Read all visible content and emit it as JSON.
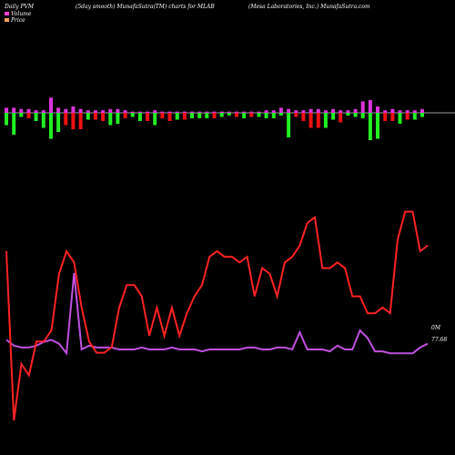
{
  "header": {
    "left": "Daily PVM",
    "center": "(5day smooth) MunafaSutra(TM) charts for MLAB",
    "right": "(Mesa Laboratories, Inc.) MunafaSutra.com"
  },
  "legend": [
    {
      "label": "Volume",
      "color": "#ff3fd0"
    },
    {
      "label": "Price",
      "color": "#f5a05a"
    }
  ],
  "colors": {
    "background": "#000000",
    "up_bar": "#22ee22",
    "down_bar": "#ee1111",
    "volume_bar": "#dd33dd",
    "volume_line": "#c050e0",
    "price_line": "#ff2222",
    "baseline": "#cccccc"
  },
  "chart_data": {
    "type": "bar",
    "volume_end_label": "0M",
    "price_end_label": "77.68",
    "bars": [
      {
        "dir": "up",
        "vol": 0.4,
        "mov": 0.9
      },
      {
        "dir": "up",
        "vol": 0.4,
        "mov": 1.6
      },
      {
        "dir": "up",
        "vol": 0.3,
        "mov": 0.3
      },
      {
        "dir": "down",
        "vol": 0.3,
        "mov": 0.4
      },
      {
        "dir": "up",
        "vol": 0.2,
        "mov": 0.6
      },
      {
        "dir": "up",
        "vol": 0.2,
        "mov": 1.1
      },
      {
        "dir": "up",
        "vol": 1.2,
        "mov": 1.9
      },
      {
        "dir": "up",
        "vol": 0.4,
        "mov": 1.4
      },
      {
        "dir": "down",
        "vol": 0.3,
        "mov": 0.9
      },
      {
        "dir": "down",
        "vol": 0.5,
        "mov": 1.2
      },
      {
        "dir": "down",
        "vol": 0.3,
        "mov": 1.2
      },
      {
        "dir": "up",
        "vol": 0.2,
        "mov": 0.5
      },
      {
        "dir": "down",
        "vol": 0.2,
        "mov": 0.5
      },
      {
        "dir": "down",
        "vol": 0.2,
        "mov": 0.6
      },
      {
        "dir": "up",
        "vol": 0.3,
        "mov": 0.9
      },
      {
        "dir": "up",
        "vol": 0.3,
        "mov": 0.8
      },
      {
        "dir": "down",
        "vol": 0.2,
        "mov": 0.4
      },
      {
        "dir": "up",
        "vol": 0.1,
        "mov": 0.3
      },
      {
        "dir": "up",
        "vol": 0.1,
        "mov": 0.6
      },
      {
        "dir": "down",
        "vol": 0.1,
        "mov": 0.6
      },
      {
        "dir": "up",
        "vol": 0.2,
        "mov": 0.9
      },
      {
        "dir": "down",
        "vol": 0.1,
        "mov": 0.4
      },
      {
        "dir": "down",
        "vol": 0.1,
        "mov": 0.6
      },
      {
        "dir": "up",
        "vol": 0.1,
        "mov": 0.5
      },
      {
        "dir": "down",
        "vol": 0.1,
        "mov": 0.5
      },
      {
        "dir": "up",
        "vol": 0.1,
        "mov": 0.4
      },
      {
        "dir": "up",
        "vol": 0.1,
        "mov": 0.4
      },
      {
        "dir": "up",
        "vol": 0.1,
        "mov": 0.4
      },
      {
        "dir": "down",
        "vol": 0.1,
        "mov": 0.4
      },
      {
        "dir": "up",
        "vol": 0.1,
        "mov": 0.3
      },
      {
        "dir": "up",
        "vol": 0.1,
        "mov": 0.2
      },
      {
        "dir": "down",
        "vol": 0.1,
        "mov": 0.3
      },
      {
        "dir": "up",
        "vol": 0.1,
        "mov": 0.4
      },
      {
        "dir": "down",
        "vol": 0.1,
        "mov": 0.3
      },
      {
        "dir": "up",
        "vol": 0.1,
        "mov": 0.3
      },
      {
        "dir": "up",
        "vol": 0.2,
        "mov": 0.4
      },
      {
        "dir": "up",
        "vol": 0.2,
        "mov": 0.4
      },
      {
        "dir": "up",
        "vol": 0.4,
        "mov": 0.2
      },
      {
        "dir": "up",
        "vol": 0.3,
        "mov": 1.8
      },
      {
        "dir": "down",
        "vol": 0.2,
        "mov": 0.3
      },
      {
        "dir": "down",
        "vol": 0.2,
        "mov": 0.6
      },
      {
        "dir": "down",
        "vol": 0.3,
        "mov": 1.1
      },
      {
        "dir": "down",
        "vol": 0.3,
        "mov": 1.1
      },
      {
        "dir": "up",
        "vol": 0.2,
        "mov": 1.1
      },
      {
        "dir": "up",
        "vol": 0.3,
        "mov": 0.5
      },
      {
        "dir": "down",
        "vol": 0.2,
        "mov": 0.7
      },
      {
        "dir": "up",
        "vol": 0.2,
        "mov": 0.2
      },
      {
        "dir": "up",
        "vol": 0.3,
        "mov": 0.3
      },
      {
        "dir": "up",
        "vol": 0.9,
        "mov": 0.4
      },
      {
        "dir": "up",
        "vol": 1.0,
        "mov": 2.0
      },
      {
        "dir": "up",
        "vol": 0.5,
        "mov": 1.9
      },
      {
        "dir": "down",
        "vol": 0.2,
        "mov": 0.6
      },
      {
        "dir": "down",
        "vol": 0.3,
        "mov": 0.6
      },
      {
        "dir": "up",
        "vol": 0.2,
        "mov": 0.8
      },
      {
        "dir": "down",
        "vol": 0.2,
        "mov": 0.5
      },
      {
        "dir": "up",
        "vol": 0.2,
        "mov": 0.5
      },
      {
        "dir": "up",
        "vol": 0.3,
        "mov": 0.3
      }
    ],
    "volume_line": [
      65,
      62,
      61,
      61,
      62,
      64,
      65,
      63,
      58,
      100,
      60,
      62,
      61,
      61,
      61,
      60,
      60,
      60,
      61,
      60,
      60,
      60,
      61,
      60,
      60,
      60,
      59,
      60,
      60,
      60,
      60,
      60,
      61,
      61,
      60,
      60,
      61,
      61,
      60,
      69,
      60,
      60,
      60,
      59,
      62,
      60,
      60,
      70,
      66,
      59,
      59,
      58,
      58,
      58,
      58,
      61,
      63
    ],
    "price_line": [
      71.5,
      56.5,
      61.5,
      60.5,
      63.5,
      63.5,
      64.5,
      69.5,
      71.5,
      70.5,
      66.5,
      63.5,
      62.5,
      62.5,
      63.0,
      66.5,
      68.5,
      68.5,
      67.5,
      64.0,
      66.5,
      64.0,
      66.5,
      64.0,
      66.0,
      67.5,
      68.5,
      71.0,
      71.5,
      71.0,
      71.0,
      70.5,
      71.0,
      67.5,
      70.0,
      69.5,
      67.5,
      70.5,
      71.0,
      72.0,
      74.0,
      74.5,
      70.0,
      70.0,
      70.5,
      70.0,
      67.5,
      67.5,
      66.0,
      66.0,
      66.5,
      66.0,
      72.5,
      75.0,
      75.0,
      71.5,
      72.0
    ]
  }
}
